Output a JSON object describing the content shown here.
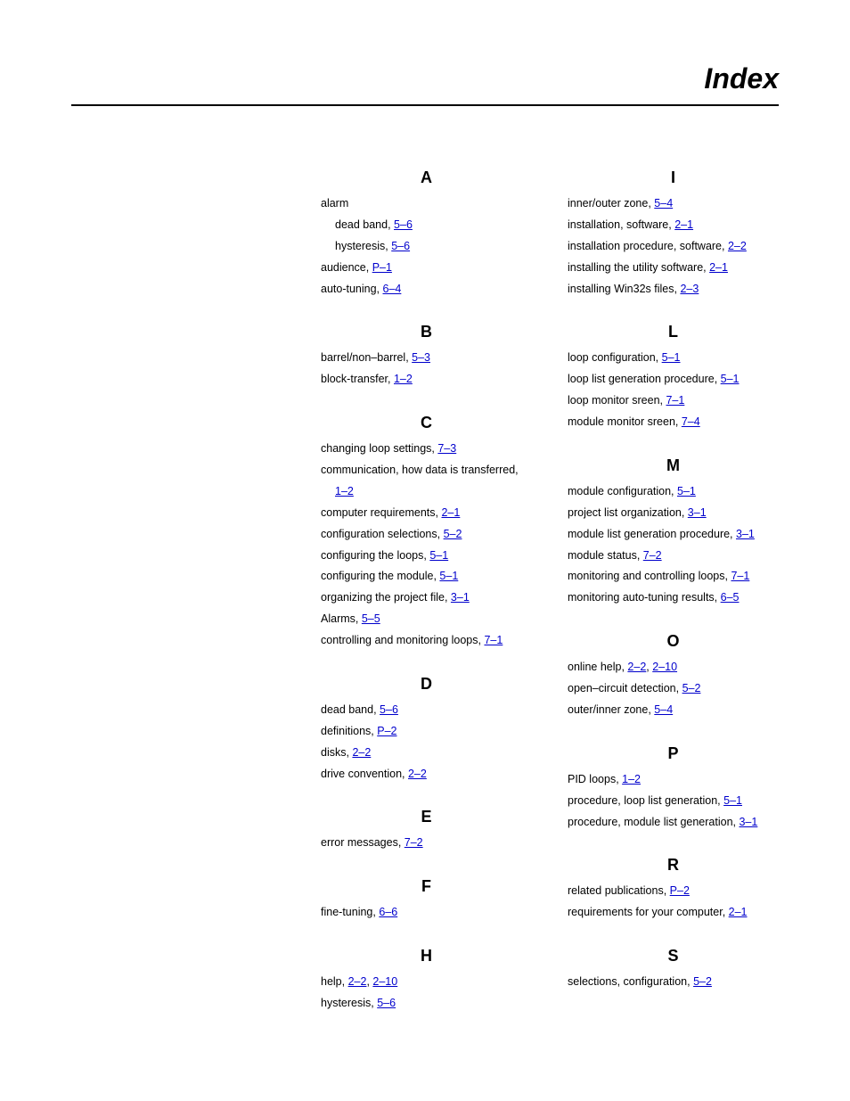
{
  "page_title": "Index",
  "colors": {
    "link": "#0000cc",
    "text": "#000000",
    "rule": "#000000",
    "background": "#ffffff"
  },
  "columns": [
    {
      "sections": [
        {
          "letter": "A",
          "entries": [
            {
              "label": "alarm",
              "refs": [],
              "children": [
                {
                  "label": "dead band,  ",
                  "refs": [
                    "  5–6"
                  ]
                },
                {
                  "label": "hysteresis,  ",
                  "refs": [
                    "  5–6"
                  ]
                }
              ]
            },
            {
              "label": "audience,  ",
              "refs": [
                "  P–1"
              ]
            },
            {
              "label": "auto-tuning,  ",
              "refs": [
                "  6–4"
              ]
            }
          ]
        },
        {
          "letter": "B",
          "entries": [
            {
              "label": "barrel/non–barrel,  ",
              "refs": [
                "  5–3"
              ]
            },
            {
              "label": "block-transfer,  ",
              "refs": [
                "  1–2"
              ]
            }
          ]
        },
        {
          "letter": "C",
          "entries": [
            {
              "label": "changing loop settings,  ",
              "refs": [
                "  7–3"
              ]
            },
            {
              "label": "communication, how data is transferred,",
              "refs": [],
              "children": [
                {
                  "label": "",
                  "refs": [
                    "  1–2"
                  ],
                  "no_indent_marker": true
                }
              ]
            },
            {
              "label": "computer requirements,  ",
              "refs": [
                "  2–1"
              ]
            },
            {
              "label": "configuration selections,  ",
              "refs": [
                "  5–2"
              ]
            },
            {
              "label": "configuring the loops,  ",
              "refs": [
                "  5–1"
              ]
            },
            {
              "label": "configuring the module,  ",
              "refs": [
                "  5–1"
              ]
            },
            {
              "label": "organizing the project file,  ",
              "refs": [
                "  3–1"
              ]
            },
            {
              "label": "Alarms,  ",
              "refs": [
                "  5–5"
              ]
            },
            {
              "label": "controlling and monitoring loops,  ",
              "refs": [
                "  7–1"
              ]
            }
          ]
        },
        {
          "letter": "D",
          "entries": [
            {
              "label": "dead band,  ",
              "refs": [
                "  5–6"
              ]
            },
            {
              "label": "definitions,  ",
              "refs": [
                "  P–2"
              ]
            },
            {
              "label": "disks,  ",
              "refs": [
                "  2–2"
              ]
            },
            {
              "label": "drive convention,  ",
              "refs": [
                "  2–2"
              ]
            }
          ]
        },
        {
          "letter": "E",
          "entries": [
            {
              "label": "error messages,  ",
              "refs": [
                "  7–2"
              ]
            }
          ]
        },
        {
          "letter": "F",
          "entries": [
            {
              "label": "fine-tuning,  ",
              "refs": [
                "  6–6"
              ]
            }
          ]
        },
        {
          "letter": "H",
          "entries": [
            {
              "label": "help,  ",
              "refs": [
                "  2–2",
                "  2–10"
              ],
              "sep": ",  "
            },
            {
              "label": "hysteresis,  ",
              "refs": [
                "  5–6"
              ]
            }
          ]
        }
      ]
    },
    {
      "sections": [
        {
          "letter": "I",
          "entries": [
            {
              "label": "inner/outer zone,  ",
              "refs": [
                "  5–4"
              ]
            },
            {
              "label": "installation, software,  ",
              "refs": [
                "  2–1"
              ]
            },
            {
              "label": "installation  procedure, software,  ",
              "refs": [
                "  2–2"
              ]
            },
            {
              "label": "installing the utility software,  ",
              "refs": [
                "  2–1"
              ]
            },
            {
              "label": "installing Win32s files,  ",
              "refs": [
                "  2–3"
              ]
            }
          ]
        },
        {
          "letter": "L",
          "entries": [
            {
              "label": "loop configuration,  ",
              "refs": [
                "  5–1"
              ]
            },
            {
              "label": "loop list generation procedure,  ",
              "refs": [
                "  5–1"
              ]
            },
            {
              "label": "loop monitor sreen,  ",
              "refs": [
                "  7–1"
              ]
            },
            {
              "label": "module monitor sreen,  ",
              "refs": [
                "  7–4"
              ]
            }
          ]
        },
        {
          "letter": "M",
          "entries": [
            {
              "label": "module configuration,  ",
              "refs": [
                "  5–1"
              ]
            },
            {
              "label": "project list organization,  ",
              "refs": [
                "  3–1"
              ]
            },
            {
              "label": "module list generation procedure,  ",
              "refs": [
                "  3–1"
              ]
            },
            {
              "label": "module status,  ",
              "refs": [
                "  7–2"
              ]
            },
            {
              "label": "monitoring and controlling loops,  ",
              "refs": [
                "  7–1"
              ]
            },
            {
              "label": "monitoring auto-tuning results,  ",
              "refs": [
                "  6–5"
              ]
            }
          ]
        },
        {
          "letter": "O",
          "entries": [
            {
              "label": "online help,  ",
              "refs": [
                "  2–2",
                "  2–10"
              ],
              "sep": ",  "
            },
            {
              "label": "open–circuit detection,  ",
              "refs": [
                "  5–2"
              ]
            },
            {
              "label": "outer/inner zone,  ",
              "refs": [
                "  5–4"
              ]
            }
          ]
        },
        {
          "letter": "P",
          "entries": [
            {
              "label": "PID loops,  ",
              "refs": [
                "  1–2"
              ]
            },
            {
              "label": "procedure, loop list generation,  ",
              "refs": [
                "  5–1"
              ]
            },
            {
              "label": "procedure, module list generation,  ",
              "refs": [
                "  3–1"
              ]
            }
          ]
        },
        {
          "letter": "R",
          "entries": [
            {
              "label": "related publications,  ",
              "refs": [
                "  P–2"
              ]
            },
            {
              "label": "requirements for your computer,  ",
              "refs": [
                "  2–1"
              ]
            }
          ]
        },
        {
          "letter": "S",
          "entries": [
            {
              "label": "selections, configuration,  ",
              "refs": [
                "  5–2"
              ]
            }
          ]
        }
      ]
    }
  ]
}
